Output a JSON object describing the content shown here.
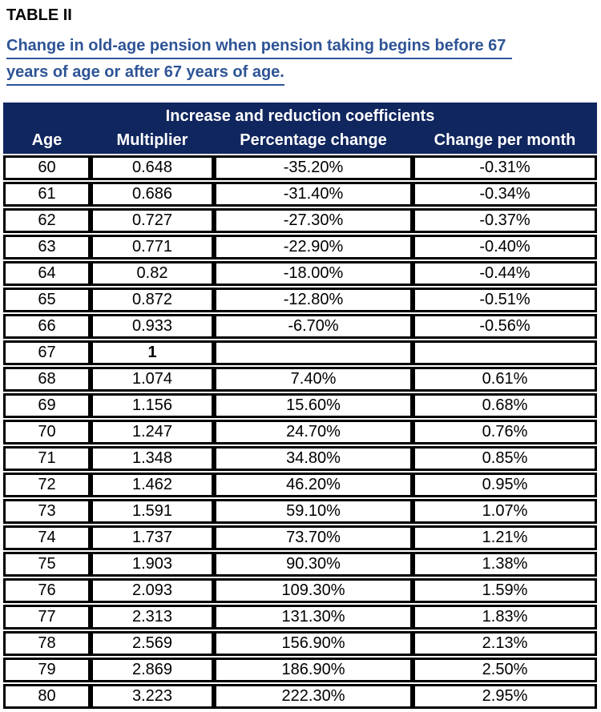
{
  "page": {
    "title": "TABLE II",
    "subtitle_line1": "Change in old-age pension when pension taking begins before 67",
    "subtitle_line2": "years of age or after 67 years of age."
  },
  "colors": {
    "header_bg": "#10265e",
    "subtitle_blue": "#2e5496",
    "border": "#000000",
    "header_text": "#ffffff"
  },
  "table": {
    "header": "Increase and reduction coefficients",
    "columns": [
      "Age",
      "Multiplier",
      "Percentage change",
      "Change per month"
    ],
    "rows": [
      {
        "age": "60",
        "multiplier": "0.648",
        "percentage_change": "-35.20%",
        "change_per_month": "-0.31%"
      },
      {
        "age": "61",
        "multiplier": "0.686",
        "percentage_change": "-31.40%",
        "change_per_month": "-0.34%"
      },
      {
        "age": "62",
        "multiplier": "0.727",
        "percentage_change": "-27.30%",
        "change_per_month": "-0.37%"
      },
      {
        "age": "63",
        "multiplier": "0.771",
        "percentage_change": "-22.90%",
        "change_per_month": "-0.40%"
      },
      {
        "age": "64",
        "multiplier": "0.82",
        "percentage_change": "-18.00%",
        "change_per_month": "-0.44%"
      },
      {
        "age": "65",
        "multiplier": "0.872",
        "percentage_change": "-12.80%",
        "change_per_month": "-0.51%"
      },
      {
        "age": "66",
        "multiplier": "0.933",
        "percentage_change": "-6.70%",
        "change_per_month": "-0.56%"
      },
      {
        "age": "67",
        "multiplier": "1",
        "percentage_change": "",
        "change_per_month": "",
        "multiplier_bold": true
      },
      {
        "age": "68",
        "multiplier": "1.074",
        "percentage_change": "7.40%",
        "change_per_month": "0.61%"
      },
      {
        "age": "69",
        "multiplier": "1.156",
        "percentage_change": "15.60%",
        "change_per_month": "0.68%"
      },
      {
        "age": "70",
        "multiplier": "1.247",
        "percentage_change": "24.70%",
        "change_per_month": "0.76%"
      },
      {
        "age": "71",
        "multiplier": "1.348",
        "percentage_change": "34.80%",
        "change_per_month": "0.85%"
      },
      {
        "age": "72",
        "multiplier": "1.462",
        "percentage_change": "46.20%",
        "change_per_month": "0.95%"
      },
      {
        "age": "73",
        "multiplier": "1.591",
        "percentage_change": "59.10%",
        "change_per_month": "1.07%"
      },
      {
        "age": "74",
        "multiplier": "1.737",
        "percentage_change": "73.70%",
        "change_per_month": "1.21%"
      },
      {
        "age": "75",
        "multiplier": "1.903",
        "percentage_change": "90.30%",
        "change_per_month": "1.38%"
      },
      {
        "age": "76",
        "multiplier": "2.093",
        "percentage_change": "109.30%",
        "change_per_month": "1.59%"
      },
      {
        "age": "77",
        "multiplier": "2.313",
        "percentage_change": "131.30%",
        "change_per_month": "1.83%"
      },
      {
        "age": "78",
        "multiplier": "2.569",
        "percentage_change": "156.90%",
        "change_per_month": "2.13%"
      },
      {
        "age": "79",
        "multiplier": "2.869",
        "percentage_change": "186.90%",
        "change_per_month": "2.50%"
      },
      {
        "age": "80",
        "multiplier": "3.223",
        "percentage_change": "222.30%",
        "change_per_month": "2.95%"
      }
    ]
  }
}
